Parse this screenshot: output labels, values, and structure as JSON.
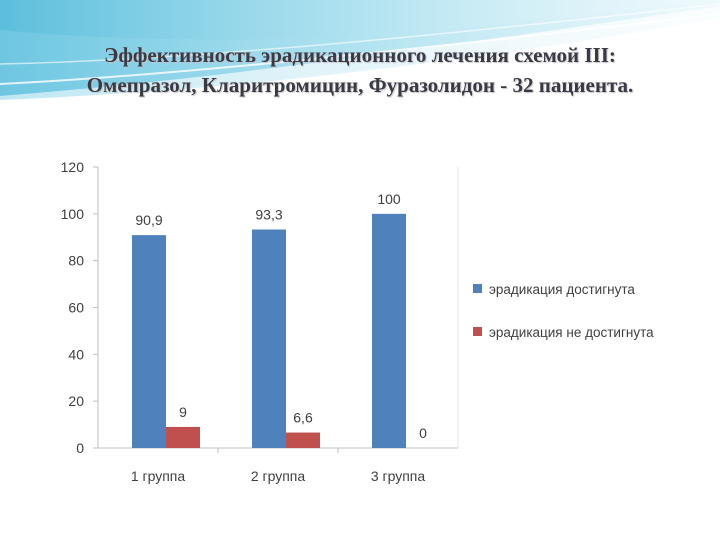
{
  "slide": {
    "title_line1": "Эффективность эрадикационного лечения схемой III:",
    "title_line2": "Омепразол, Кларитромицин, Фуразолидон - 32 пациента."
  },
  "chart_data": {
    "type": "bar",
    "categories": [
      "1 группа",
      "2 группа",
      "3 группа"
    ],
    "series": [
      {
        "name": "эрадикация достигнута",
        "color": "#4f81bd",
        "values": [
          90.9,
          93.3,
          100
        ],
        "labels": [
          "90,9",
          "93,3",
          "100"
        ]
      },
      {
        "name": "эрадикация не достигнута",
        "color": "#c0504d",
        "values": [
          9,
          6.6,
          0
        ],
        "labels": [
          "9",
          "6,6",
          "0"
        ]
      }
    ],
    "ylim": [
      0,
      120
    ],
    "yticks": [
      0,
      20,
      40,
      60,
      80,
      100,
      120
    ],
    "grid": false,
    "legend_position": "right"
  }
}
